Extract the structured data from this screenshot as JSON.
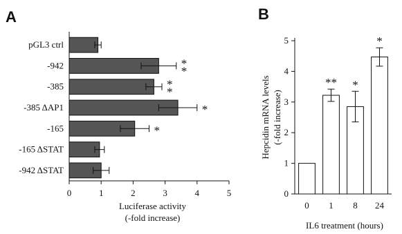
{
  "chart_data": [
    {
      "panel": "A",
      "type": "bar",
      "orientation": "horizontal",
      "categories": [
        "pGL3 ctrl",
        "-942",
        "-385",
        "-385 ΔAP1",
        "-165",
        "-165 ΔSTAT",
        "-942 ΔSTAT"
      ],
      "values": [
        0.9,
        2.8,
        2.65,
        3.4,
        2.05,
        0.95,
        1.0
      ],
      "errors": [
        0.1,
        0.55,
        0.25,
        0.6,
        0.45,
        0.15,
        0.25
      ],
      "significance": [
        "",
        "**",
        "**",
        "*",
        "*",
        "",
        ""
      ],
      "xlabel": [
        "Luciferase activity",
        "(-fold increase)"
      ],
      "xlim": [
        0,
        5
      ],
      "xticks": [
        0,
        1,
        2,
        3,
        4,
        5
      ],
      "bar_color": "#555555"
    },
    {
      "panel": "B",
      "type": "bar",
      "orientation": "vertical",
      "categories": [
        "0",
        "1",
        "8",
        "24"
      ],
      "values": [
        1.0,
        3.22,
        2.85,
        4.47
      ],
      "errors": [
        0.0,
        0.2,
        0.5,
        0.3
      ],
      "significance": [
        "",
        "**",
        "*",
        "*"
      ],
      "ylabel": [
        "Hepcidin mRNA levels",
        "(-fold increase)"
      ],
      "xlabel": "IL6 treatment (hours)",
      "ylim": [
        0,
        5
      ],
      "yticks": [
        0,
        1,
        2,
        3,
        4,
        5
      ],
      "bar_color": "#ffffff"
    }
  ]
}
